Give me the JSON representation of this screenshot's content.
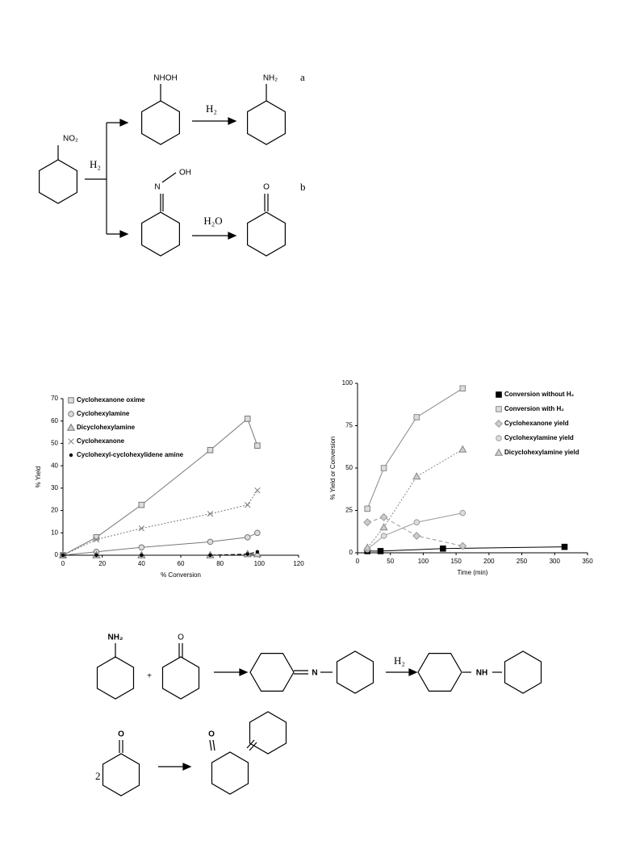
{
  "scheme1": {
    "nitro": "NO₂",
    "nhoh": "NHOH",
    "amine": "NH₂",
    "label_a": "a",
    "reagent1": "H₂",
    "reagent2": "H₂",
    "oxime_n": "N",
    "oxime_oh": "OH",
    "label_b": "b",
    "ketone_o": "O",
    "reagent3": "H₂O"
  },
  "chart_data": [
    {
      "type": "line",
      "xlabel": "% Conversion",
      "ylabel": "% Yield",
      "xlim": [
        0,
        120
      ],
      "xticks": [
        0,
        20,
        40,
        60,
        80,
        100,
        120
      ],
      "ylim": [
        0,
        70
      ],
      "yticks": [
        0,
        10,
        20,
        30,
        40,
        50,
        60,
        70
      ],
      "legend": "top-left",
      "x": [
        0,
        17,
        40,
        75,
        94,
        99
      ],
      "series": [
        {
          "name": "Cyclohexanone oxime",
          "color": "#777777",
          "marker": "square",
          "dash": "none",
          "values": [
            0,
            8,
            22.5,
            47,
            61,
            49
          ]
        },
        {
          "name": "Cyclohexylamine",
          "color": "#777777",
          "marker": "circle",
          "dash": "none",
          "values": [
            0,
            1.5,
            3.5,
            6,
            8,
            10
          ]
        },
        {
          "name": "Dicyclohexylamine",
          "color": "#777777",
          "marker": "triangle",
          "dash": "dash",
          "values": [
            0,
            0,
            0,
            0,
            0.5,
            0.5
          ]
        },
        {
          "name": "Cyclohexanone",
          "color": "#777777",
          "marker": "x",
          "dash": "dot",
          "values": [
            0,
            7,
            12,
            18.5,
            22.5,
            29
          ]
        },
        {
          "name": "Cyclohexyl-cyclohexylidene amine",
          "color": "#000000",
          "marker": "dot",
          "dash": "dash",
          "values": [
            0,
            0,
            0,
            0,
            0.5,
            1.5
          ]
        }
      ]
    },
    {
      "type": "line",
      "xlabel": "Time (min)",
      "ylabel": "% Yield or Conversion",
      "xlim": [
        0,
        350
      ],
      "xticks": [
        0,
        50,
        100,
        150,
        200,
        250,
        300,
        350
      ],
      "ylim": [
        0,
        100
      ],
      "yticks": [
        0,
        25,
        50,
        75,
        100
      ],
      "legend": "top-right",
      "series": [
        {
          "name": "Conversion without H₂",
          "color": "#000000",
          "marker": "filledsquare",
          "dash": "none",
          "x": [
            15,
            35,
            130,
            315
          ],
          "values": [
            1,
            1,
            2.5,
            3.5
          ]
        },
        {
          "name": "Conversion with H₂",
          "color": "#888888",
          "marker": "square",
          "dash": "none",
          "x": [
            15,
            40,
            90,
            160
          ],
          "values": [
            26,
            50,
            80,
            97
          ]
        },
        {
          "name": "Cyclohexanone yield",
          "color": "#999999",
          "marker": "diamond",
          "dash": "dash",
          "x": [
            15,
            40,
            90,
            160
          ],
          "values": [
            18,
            21,
            10,
            4
          ]
        },
        {
          "name": "Cyclohexylamine yield",
          "color": "#999999",
          "marker": "circle",
          "dash": "none",
          "x": [
            15,
            40,
            90,
            160
          ],
          "values": [
            2,
            10,
            18,
            23.5
          ]
        },
        {
          "name": "Dicyclohexylamine yield",
          "color": "#888888",
          "marker": "triangle",
          "dash": "dot",
          "x": [
            15,
            40,
            90,
            160
          ],
          "values": [
            3,
            15,
            45,
            61
          ]
        }
      ]
    }
  ],
  "scheme2": {
    "amine": "NH₂",
    "plus": "+",
    "ketone_o": "O",
    "imine_n": "N",
    "reagent": "H₂",
    "amine_nh": "NH",
    "coefficient": "2",
    "ketone2_o": "O",
    "product_o": "O"
  }
}
